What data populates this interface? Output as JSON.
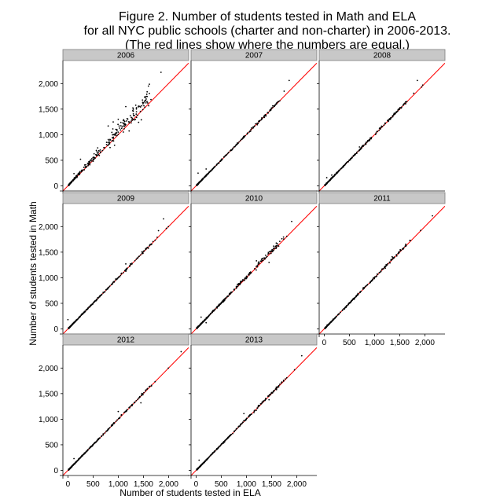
{
  "chart_data": {
    "type": "scatter",
    "title": [
      "Figure 2. Number of students tested in Math and ELA",
      "for all NYC public schools (charter and non-charter) in 2006-2013.",
      "(The red lines show where the numbers are equal.)"
    ],
    "xlabel": "Number of students tested in ELA",
    "ylabel": "Number of students tested in Math",
    "xlim": [
      -100,
      2400
    ],
    "ylim": [
      -100,
      2450
    ],
    "x_ticks": [
      0,
      500,
      1000,
      1500,
      2000
    ],
    "x_tick_labels": [
      "0",
      "500",
      "1,000",
      "1,500",
      "2,000"
    ],
    "y_ticks": [
      0,
      500,
      1000,
      1500,
      2000
    ],
    "y_tick_labels": [
      "0",
      "500",
      "1,000",
      "1,500",
      "2,000"
    ],
    "grid": false,
    "reference_line": {
      "type": "y=x",
      "color": "#ff0000"
    },
    "point_color": "#000000",
    "strip_fill": "#c8c8c8",
    "facets": [
      {
        "label": "2006",
        "spread": 0.22,
        "bias": 0.14,
        "extremes": [
          [
            120,
            240
          ],
          [
            250,
            520
          ],
          [
            1850,
            2220
          ],
          [
            1600,
            1950
          ],
          [
            1150,
            1550
          ],
          [
            1300,
            1500
          ],
          [
            1000,
            1300
          ],
          [
            900,
            1250
          ],
          [
            800,
            1170
          ]
        ]
      },
      {
        "label": "2007",
        "spread": 0.025,
        "bias": 0.01,
        "extremes": [
          [
            40,
            250
          ],
          [
            1850,
            2060
          ],
          [
            1750,
            1850
          ],
          [
            200,
            330
          ]
        ]
      },
      {
        "label": "2008",
        "spread": 0.03,
        "bias": 0.01,
        "extremes": [
          [
            50,
            160
          ],
          [
            150,
            210
          ],
          [
            1850,
            2060
          ],
          [
            700,
            760
          ]
        ]
      },
      {
        "label": "2009",
        "spread": 0.03,
        "bias": 0.01,
        "extremes": [
          [
            0,
            180
          ],
          [
            1900,
            2150
          ],
          [
            1150,
            1270
          ],
          [
            1800,
            1920
          ]
        ]
      },
      {
        "label": "2010",
        "spread": 0.06,
        "bias": 0.03,
        "extremes": [
          [
            100,
            230
          ],
          [
            1300,
            1360
          ],
          [
            1200,
            1330
          ],
          [
            1450,
            1300
          ],
          [
            1900,
            2100
          ],
          [
            350,
            350
          ],
          [
            200,
            120
          ]
        ]
      },
      {
        "label": "2011",
        "spread": 0.03,
        "bias": 0.01,
        "extremes": [
          [
            60,
            80
          ],
          [
            2150,
            2210
          ],
          [
            1700,
            1730
          ],
          [
            1350,
            1410
          ]
        ]
      },
      {
        "label": "2012",
        "spread": 0.025,
        "bias": 0.01,
        "extremes": [
          [
            120,
            230
          ],
          [
            2250,
            2320
          ],
          [
            1450,
            1320
          ],
          [
            1000,
            1150
          ]
        ]
      },
      {
        "label": "2013",
        "spread": 0.025,
        "bias": 0.01,
        "extremes": [
          [
            60,
            200
          ],
          [
            2100,
            2240
          ],
          [
            1450,
            1380
          ],
          [
            950,
            1110
          ]
        ]
      }
    ]
  }
}
